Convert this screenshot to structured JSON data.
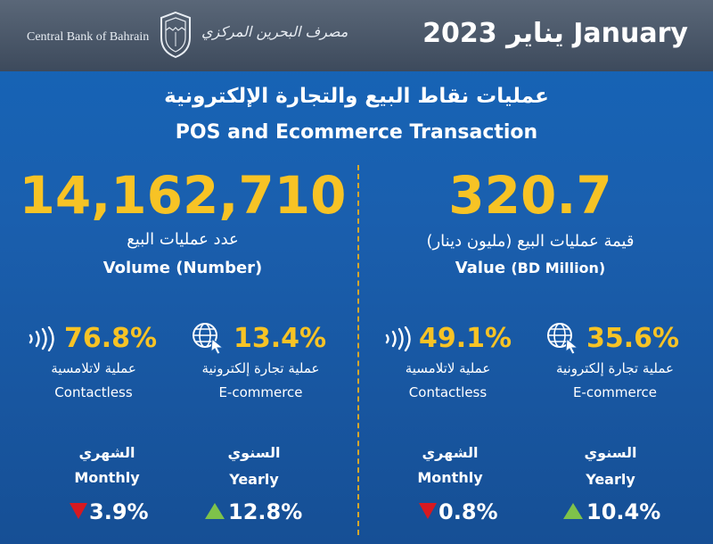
{
  "header": {
    "bank_name_en": "Central Bank of Bahrain",
    "bank_name_ar": "مصرف البحرين المركزي",
    "month": "يناير 2023 January"
  },
  "title": {
    "ar": "عمليات نقاط البيع والتجارة الإلكترونية",
    "en": "POS and Ecommerce Transaction"
  },
  "volume": {
    "big_number": "14,162,710",
    "label_ar": "عدد عمليات البيع",
    "label_en": "Volume (Number)",
    "contactless": {
      "pct": "76.8%",
      "ar": "عملية لاتلامسية",
      "en": "Contactless"
    },
    "ecommerce": {
      "pct": "13.4%",
      "ar": "عملية تجارة إلكترونية",
      "en": "E-commerce"
    },
    "monthly": {
      "ar": "الشهري",
      "en": "Monthly",
      "change": "3.9%",
      "direction": "down"
    },
    "yearly": {
      "ar": "السنوي",
      "en": "Yearly",
      "change": "12.8%",
      "direction": "up"
    }
  },
  "value": {
    "big_number": "320.7",
    "label_ar": "قيمة عمليات البيع (مليون دينار)",
    "label_en_main": "Value",
    "label_en_sub": "(BD Million)",
    "contactless": {
      "pct": "49.1%",
      "ar": "عملية لاتلامسية",
      "en": "Contactless"
    },
    "ecommerce": {
      "pct": "35.6%",
      "ar": "عملية تجارة إلكترونية",
      "en": "E-commerce"
    },
    "monthly": {
      "ar": "الشهري",
      "en": "Monthly",
      "change": "0.8%",
      "direction": "down"
    },
    "yearly": {
      "ar": "السنوي",
      "en": "Yearly",
      "change": "10.4%",
      "direction": "up"
    }
  },
  "colors": {
    "accent": "#f7c325",
    "down": "#d71920",
    "up": "#7ec24a",
    "background": "#1a5fae",
    "header": "#4a5668"
  },
  "icons": {
    "contactless": "contactless-icon",
    "ecommerce": "globe-cursor-icon"
  }
}
